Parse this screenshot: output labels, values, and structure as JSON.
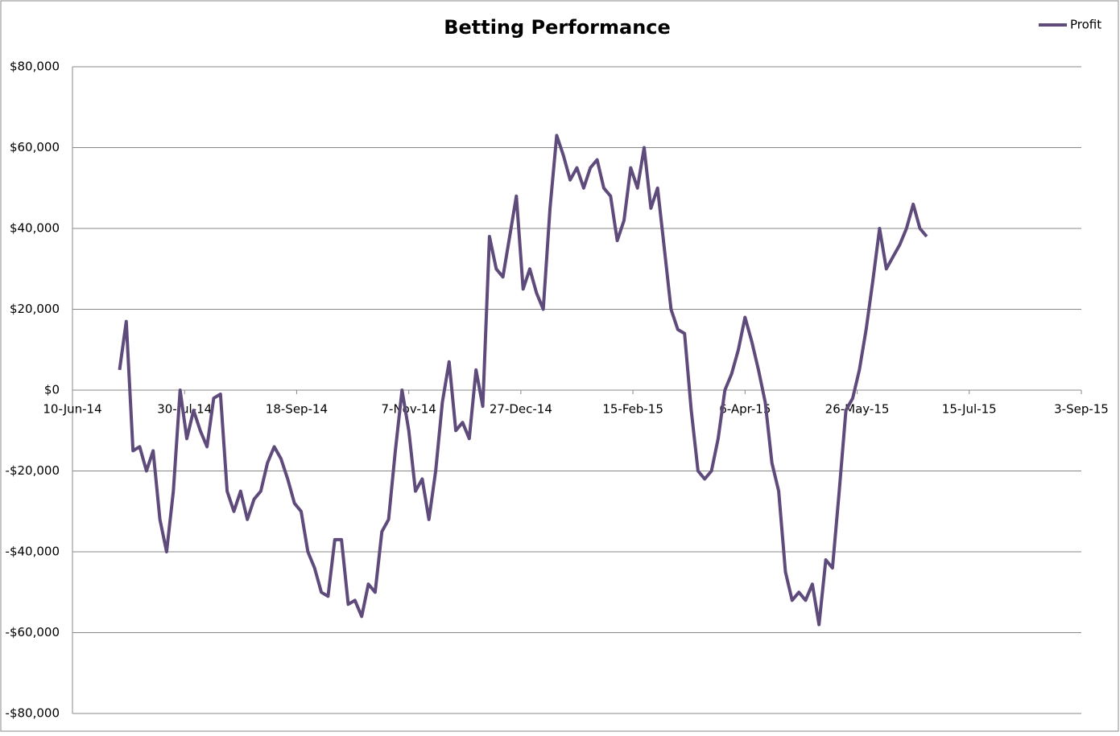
{
  "chart_data": {
    "type": "line",
    "title": "Betting Performance",
    "x": [
      "2014-07-01",
      "2014-07-04",
      "2014-07-07",
      "2014-07-10",
      "2014-07-13",
      "2014-07-16",
      "2014-07-19",
      "2014-07-22",
      "2014-07-25",
      "2014-07-28",
      "2014-07-31",
      "2014-08-03",
      "2014-08-06",
      "2014-08-09",
      "2014-08-12",
      "2014-08-15",
      "2014-08-18",
      "2014-08-21",
      "2014-08-24",
      "2014-08-27",
      "2014-08-30",
      "2014-09-02",
      "2014-09-05",
      "2014-09-08",
      "2014-09-11",
      "2014-09-14",
      "2014-09-17",
      "2014-09-20",
      "2014-09-23",
      "2014-09-26",
      "2014-09-29",
      "2014-10-02",
      "2014-10-05",
      "2014-10-08",
      "2014-10-11",
      "2014-10-14",
      "2014-10-17",
      "2014-10-20",
      "2014-10-23",
      "2014-10-26",
      "2014-10-29",
      "2014-11-01",
      "2014-11-04",
      "2014-11-07",
      "2014-11-10",
      "2014-11-13",
      "2014-11-16",
      "2014-11-19",
      "2014-11-22",
      "2014-11-25",
      "2014-11-28",
      "2014-12-01",
      "2014-12-04",
      "2014-12-07",
      "2014-12-10",
      "2014-12-13",
      "2014-12-16",
      "2014-12-19",
      "2014-12-22",
      "2014-12-25",
      "2014-12-28",
      "2014-12-31",
      "2015-01-03",
      "2015-01-06",
      "2015-01-09",
      "2015-01-12",
      "2015-01-15",
      "2015-01-18",
      "2015-01-21",
      "2015-01-24",
      "2015-01-27",
      "2015-01-30",
      "2015-02-02",
      "2015-02-05",
      "2015-02-08",
      "2015-02-11",
      "2015-02-14",
      "2015-02-17",
      "2015-02-20",
      "2015-02-23",
      "2015-02-26",
      "2015-03-01",
      "2015-03-04",
      "2015-03-07",
      "2015-03-10",
      "2015-03-13",
      "2015-03-16",
      "2015-03-19",
      "2015-03-22",
      "2015-03-25",
      "2015-03-28",
      "2015-03-31",
      "2015-04-03",
      "2015-04-06",
      "2015-04-09",
      "2015-04-12",
      "2015-04-15",
      "2015-04-18",
      "2015-04-21",
      "2015-04-24",
      "2015-04-27",
      "2015-04-30",
      "2015-05-03",
      "2015-05-06",
      "2015-05-09",
      "2015-05-12",
      "2015-05-15",
      "2015-05-18",
      "2015-05-21",
      "2015-05-24",
      "2015-05-27",
      "2015-05-30",
      "2015-06-02",
      "2015-06-05",
      "2015-06-08",
      "2015-06-11",
      "2015-06-14",
      "2015-06-17",
      "2015-06-20",
      "2015-06-23",
      "2015-06-26"
    ],
    "series": [
      {
        "name": "Profit",
        "color": "#5e4b7c",
        "values": [
          5000,
          17000,
          -15000,
          -14000,
          -20000,
          -15000,
          -32000,
          -40000,
          -25000,
          0,
          -12000,
          -5000,
          -10000,
          -14000,
          -2000,
          -1000,
          -25000,
          -30000,
          -25000,
          -32000,
          -27000,
          -25000,
          -18000,
          -14000,
          -17000,
          -22000,
          -28000,
          -30000,
          -40000,
          -44000,
          -50000,
          -51000,
          -37000,
          -37000,
          -53000,
          -52000,
          -56000,
          -48000,
          -50000,
          -35000,
          -32000,
          -15000,
          0,
          -10000,
          -25000,
          -22000,
          -32000,
          -20000,
          -3000,
          7000,
          -10000,
          -8000,
          -12000,
          5000,
          -4000,
          38000,
          30000,
          28000,
          38000,
          48000,
          25000,
          30000,
          24000,
          20000,
          45000,
          63000,
          58000,
          52000,
          55000,
          50000,
          55000,
          57000,
          50000,
          48000,
          37000,
          42000,
          55000,
          50000,
          60000,
          45000,
          50000,
          35000,
          20000,
          15000,
          14000,
          -5000,
          -20000,
          -22000,
          -20000,
          -12000,
          0,
          4000,
          10000,
          18000,
          12000,
          5000,
          -3000,
          -18000,
          -25000,
          -45000,
          -52000,
          -50000,
          -52000,
          -48000,
          -58000,
          -42000,
          -44000,
          -25000,
          -5000,
          -2000,
          5000,
          15000,
          27000,
          40000,
          30000,
          33000,
          36000,
          40000,
          46000,
          40000,
          38000
        ]
      }
    ],
    "xlim": [
      "2014-06-10",
      "2015-09-03"
    ],
    "xticks": [
      {
        "value": "2014-06-10",
        "label": "10-Jun-14"
      },
      {
        "value": "2014-07-30",
        "label": "30-Jul-14"
      },
      {
        "value": "2014-09-18",
        "label": "18-Sep-14"
      },
      {
        "value": "2014-11-07",
        "label": "7-Nov-14"
      },
      {
        "value": "2014-12-27",
        "label": "27-Dec-14"
      },
      {
        "value": "2015-02-15",
        "label": "15-Feb-15"
      },
      {
        "value": "2015-04-06",
        "label": "6-Apr-15"
      },
      {
        "value": "2015-05-26",
        "label": "26-May-15"
      },
      {
        "value": "2015-07-15",
        "label": "15-Jul-15"
      },
      {
        "value": "2015-09-03",
        "label": "3-Sep-15"
      }
    ],
    "ylim": [
      -80000,
      80000
    ],
    "yticks": [
      {
        "value": -80000,
        "label": "-$80,000"
      },
      {
        "value": -60000,
        "label": "-$60,000"
      },
      {
        "value": -40000,
        "label": "-$40,000"
      },
      {
        "value": -20000,
        "label": "-$20,000"
      },
      {
        "value": 0,
        "label": "$0"
      },
      {
        "value": 20000,
        "label": "$20,000"
      },
      {
        "value": 40000,
        "label": "$40,000"
      },
      {
        "value": 60000,
        "label": "$60,000"
      },
      {
        "value": 80000,
        "label": "$80,000"
      }
    ],
    "grid": true,
    "legend": "top-right"
  }
}
